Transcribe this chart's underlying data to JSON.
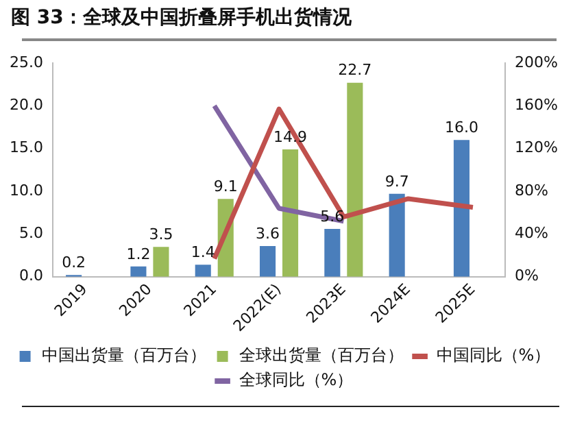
{
  "chart_data": {
    "type": "bar",
    "title": "图 33：全球及中国折叠屏手机出货情况",
    "categories": [
      "2019",
      "2020",
      "2021",
      "2022(E)",
      "2023E",
      "2024E",
      "2025E"
    ],
    "series": [
      {
        "name": "中国出货量（百万台）",
        "color": "#4a7ebb",
        "values": [
          0.2,
          1.2,
          1.4,
          3.6,
          5.6,
          9.7,
          16.0
        ],
        "value_labels": [
          "0.2",
          "1.2",
          "1.4",
          "3.6",
          "5.6",
          "9.7",
          "16.0"
        ]
      },
      {
        "name": "全球出货量（百万台）",
        "color": "#9bbb59",
        "values": [
          null,
          3.5,
          9.1,
          14.9,
          22.7,
          null,
          null
        ],
        "value_labels": [
          null,
          "3.5",
          "9.1",
          "14.9",
          "22.7",
          null,
          null
        ]
      },
      {
        "name": "中国同比（%）",
        "type": "line",
        "axis": "y2",
        "color": "#c0504d",
        "values": [
          null,
          null,
          17,
          157,
          56,
          73,
          65
        ]
      },
      {
        "name": "全球同比（%）",
        "type": "line",
        "axis": "y2",
        "color": "#8064a2",
        "values": [
          null,
          null,
          160,
          64,
          52,
          null,
          null
        ]
      }
    ],
    "ylim": [
      0,
      25
    ],
    "yticks": [
      {
        "value": 0,
        "label": "0.0"
      },
      {
        "value": 5,
        "label": "5.0"
      },
      {
        "value": 10,
        "label": "10.0"
      },
      {
        "value": 15,
        "label": "15.0"
      },
      {
        "value": 20,
        "label": "20.0"
      },
      {
        "value": 25,
        "label": "25.0"
      }
    ],
    "y2lim": [
      0,
      200
    ],
    "y2ticks": [
      {
        "value": 0,
        "label": "0%"
      },
      {
        "value": 40,
        "label": "40%"
      },
      {
        "value": 80,
        "label": "80%"
      },
      {
        "value": 120,
        "label": "120%"
      },
      {
        "value": 160,
        "label": "160%"
      },
      {
        "value": 200,
        "label": "200%"
      }
    ],
    "grid": false,
    "legend": "bottom",
    "marker": "none",
    "line_style": "solid"
  }
}
